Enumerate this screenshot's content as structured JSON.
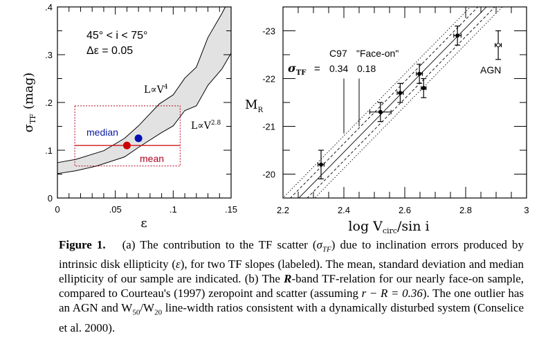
{
  "chart_data": [
    {
      "panel": "a",
      "type": "area",
      "title": "",
      "xlabel": "ε",
      "ylabel": "σ_TF (mag)",
      "ylabel_main": "σ",
      "ylabel_sub": "TF",
      "ylabel_unit": "(mag)",
      "xlim": [
        0,
        0.15
      ],
      "ylim": [
        0,
        0.4
      ],
      "xticks": [
        0,
        0.05,
        0.1,
        0.15
      ],
      "xtick_labels": [
        "0",
        ".05",
        ".1",
        ".15"
      ],
      "yticks": [
        0,
        0.1,
        0.2,
        0.3,
        0.4
      ],
      "ytick_labels": [
        "0",
        ".1",
        ".2",
        ".3",
        ".4"
      ],
      "annotations": {
        "line1": "45° < i < 75°",
        "line2": "Δε = 0.05",
        "upper_label": "L∝V",
        "upper_label_sup": "4",
        "lower_label": "L∝V",
        "lower_label_sup": "2.8",
        "median_label": "median",
        "mean_label": "mean"
      },
      "series": [
        {
          "name": "L∝V^4",
          "x": [
            0,
            0.016,
            0.04,
            0.058,
            0.07,
            0.088,
            0.1,
            0.11,
            0.12,
            0.13,
            0.142,
            0.145
          ],
          "y": [
            0.074,
            0.081,
            0.099,
            0.125,
            0.151,
            0.197,
            0.216,
            0.251,
            0.274,
            0.336,
            0.386,
            0.401
          ]
        },
        {
          "name": "L∝V^2.8",
          "x": [
            0,
            0.016,
            0.034,
            0.058,
            0.07,
            0.09,
            0.1,
            0.11,
            0.12,
            0.13,
            0.142,
            0.15
          ],
          "y": [
            0.051,
            0.057,
            0.067,
            0.086,
            0.106,
            0.137,
            0.151,
            0.183,
            0.193,
            0.236,
            0.27,
            0.303
          ]
        }
      ],
      "points": {
        "mean": {
          "x": 0.06,
          "y": 0.11,
          "color": "#cc0000"
        },
        "median": {
          "x": 0.07,
          "y": 0.125,
          "color": "#0010b0"
        }
      },
      "mean_line": {
        "x": [
          0.015,
          0.106
        ],
        "y": 0.11
      },
      "std_box": {
        "x": [
          0.015,
          0.106
        ],
        "y": [
          0.067,
          0.193
        ]
      },
      "colors": {
        "band": "#e2e2e2",
        "mean": "#cc0000",
        "median": "#0a1aa0",
        "box": "#b00020"
      }
    },
    {
      "panel": "b",
      "type": "scatter",
      "title": "",
      "xlabel": "log V_circ/sin i",
      "xlabel_pre": "log  V",
      "xlabel_sub": "circ",
      "xlabel_post": "/sin  i",
      "ylabel": "M_R",
      "ylabel_main": "M",
      "ylabel_sub": "R",
      "xlim": [
        2.2,
        3.0
      ],
      "ylim": [
        -19.5,
        -23.5
      ],
      "xticks": [
        2.2,
        2.4,
        2.6,
        2.8,
        3.0
      ],
      "xtick_labels": [
        "2.2",
        "2.4",
        "2.6",
        "2.8",
        "3"
      ],
      "yticks": [
        -20,
        -21,
        -22,
        -23
      ],
      "ytick_labels": [
        "-20",
        "-21",
        "-22",
        "-23"
      ],
      "annotations": {
        "col1": "C97",
        "col2": "\"Face-on\"",
        "sigma_main": "σ",
        "sigma_sub": "TF",
        "eq": "=",
        "val1": "0.34",
        "val2": "0.18",
        "agn_label": "AGN"
      },
      "relation": {
        "x": [
          2.252,
          2.868
        ],
        "y": [
          -19.5,
          -23.5
        ],
        "scatter_face_on": 0.18,
        "scatter_c97": 0.34
      },
      "scale_bars": [
        {
          "x": 2.4,
          "y": [
            -22.0,
            -20.85
          ]
        },
        {
          "x": 2.45,
          "y": [
            -22.0,
            -21.0
          ]
        }
      ],
      "points": [
        {
          "x": 2.325,
          "y": -20.2,
          "xerr": 0.01,
          "yerr": 0.3
        },
        {
          "x": 2.52,
          "y": -21.3,
          "xerr": 0.035,
          "yerr": 0.2
        },
        {
          "x": 2.585,
          "y": -21.7,
          "xerr": 0.01,
          "yerr": 0.2
        },
        {
          "x": 2.648,
          "y": -22.1,
          "xerr": 0.01,
          "yerr": 0.2
        },
        {
          "x": 2.662,
          "y": -21.8,
          "xerr": 0.008,
          "yerr": 0.2
        },
        {
          "x": 2.773,
          "y": -22.9,
          "xerr": 0.012,
          "yerr": 0.2
        }
      ],
      "outlier": {
        "label": "AGN",
        "x": 2.907,
        "y": -22.7,
        "xerr": 0.01,
        "yerr": 0.3
      }
    }
  ],
  "caption": {
    "label": "Figure 1.",
    "text": "(a) The contribution to the TF scatter (σ_TF) due to inclination errors produced by intrinsic disk ellipticity (ε), for two TF slopes (labeled). The mean, standard deviation and median ellipticity of our sample are indicated. (b) The R-band TF-relation for our nearly face-on sample, compared to Courteau's (1997) zeropoint and scatter (assuming r − R = 0.36). The one outlier has an AGN and W50/W20 line-width ratios consistent with a dynamically disturbed system (Conselice et al. 2000).",
    "parts": {
      "p1": "(a) The contribution to the TF scatter (",
      "p1_sym": "σ",
      "p1_sub": "TF",
      "p2": ") due to inclination errors produced by intrinsic disk ellipticity (",
      "p2_sym": "ε",
      "p3": "), for two TF slopes (labeled). The mean, standard deviation and median ellipticity of our sample are indicated. (b) The ",
      "p3_sym": "R",
      "p4": "-band TF-relation for our nearly face-on sample, compared to Courteau's (1997) zeropoint and scatter (assuming ",
      "p4_eq": "r − R = 0.36",
      "p5": "). The one outlier has an AGN and W",
      "p5_sub1": "50",
      "p5_mid": "/W",
      "p5_sub2": "20",
      "p6": " line-width ratios consistent with a dynamically disturbed system (Conselice et al. 2000)."
    }
  }
}
